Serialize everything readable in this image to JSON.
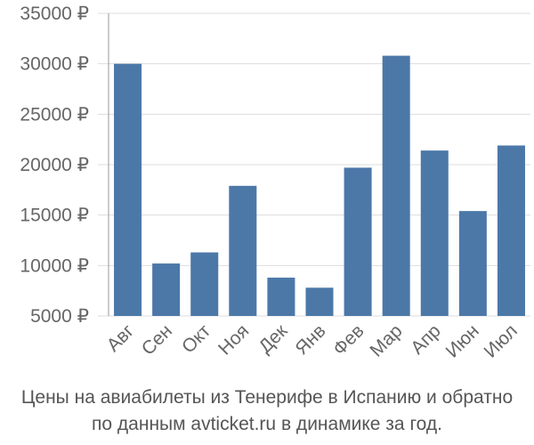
{
  "caption": {
    "line1": "Цены на авиабилеты из Тенерифе в Испанию и обратно",
    "line2": "по данным avticket.ru в динамике за год."
  },
  "colors": {
    "bar": "#4c78a8",
    "grid": "#dddddd",
    "axis": "#999999"
  },
  "chart_data": {
    "type": "bar",
    "categories": [
      "Авг",
      "Сен",
      "Окт",
      "Ноя",
      "Дек",
      "Янв",
      "Фев",
      "Мар",
      "Апр",
      "Июн",
      "Июл"
    ],
    "values": [
      30000,
      10200,
      11300,
      17900,
      8800,
      7800,
      19700,
      30800,
      21400,
      15400,
      21900
    ],
    "yticks": [
      5000,
      10000,
      15000,
      20000,
      25000,
      30000,
      35000
    ],
    "ytick_labels": [
      "5000 ₽",
      "10000 ₽",
      "15000 ₽",
      "20000 ₽",
      "25000 ₽",
      "30000 ₽",
      "35000 ₽"
    ],
    "ylim": [
      5000,
      35000
    ],
    "grid": true
  }
}
